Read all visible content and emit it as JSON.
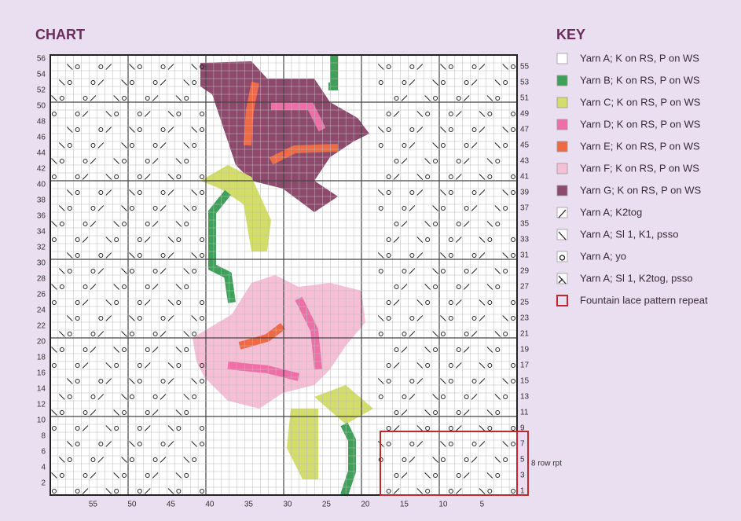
{
  "chart": {
    "title": "CHART",
    "left_row_labels": [
      2,
      4,
      6,
      8,
      10,
      12,
      14,
      16,
      18,
      20,
      22,
      24,
      26,
      28,
      30,
      32,
      34,
      36,
      38,
      40,
      42,
      44,
      46,
      48,
      50,
      52,
      54,
      56
    ],
    "right_row_labels": [
      1,
      3,
      5,
      7,
      9,
      11,
      13,
      15,
      17,
      19,
      21,
      23,
      25,
      27,
      29,
      31,
      33,
      35,
      37,
      39,
      41,
      43,
      45,
      47,
      49,
      51,
      53,
      55
    ],
    "column_labels": [
      55,
      50,
      45,
      40,
      35,
      30,
      25,
      20,
      15,
      10,
      5
    ],
    "repeat_label": "8 row rpt"
  },
  "key": {
    "title": "KEY",
    "items": [
      {
        "label": "Yarn A; K on RS, P on WS",
        "color": "#ffffff"
      },
      {
        "label": "Yarn B; K on RS, P on WS",
        "color": "#3fa05a"
      },
      {
        "label": "Yarn C; K on RS, P on WS",
        "color": "#d3dd6a"
      },
      {
        "label": "Yarn D; K on RS, P on WS",
        "color": "#ee6fa8"
      },
      {
        "label": "Yarn E; K on RS, P on WS",
        "color": "#ee6a45"
      },
      {
        "label": "Yarn F; K on RS, P on WS",
        "color": "#f6bfd6"
      },
      {
        "label": "Yarn G; K on RS, P on WS",
        "color": "#8e4a6d"
      },
      {
        "label": "Yarn A; K2tog",
        "color": "#ffffff"
      },
      {
        "label": "Yarn A; Sl 1, K1, psso",
        "color": "#ffffff"
      },
      {
        "label": "Yarn A; yo",
        "color": "#ffffff"
      },
      {
        "label": "Yarn A; Sl 1, K2tog, psso",
        "color": "#ffffff"
      },
      {
        "label": "Fountain lace pattern repeat",
        "color": "#c0282d"
      }
    ]
  }
}
